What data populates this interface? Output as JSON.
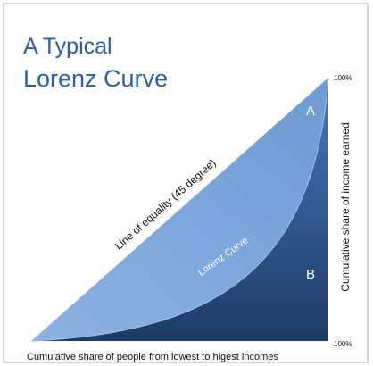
{
  "title": {
    "line1": "A Typical",
    "line2": "Lorenz Curve"
  },
  "regions": {
    "a": "A",
    "b": "B"
  },
  "labels": {
    "equality": "Line of equality (45 degree)",
    "curve": "Lorenz Curve",
    "y_axis": "Cumulative share of income earned",
    "x_axis": "Cumulative share of people from lowest to higest incomes",
    "y_top": "100%",
    "x_end": "100%"
  }
}
